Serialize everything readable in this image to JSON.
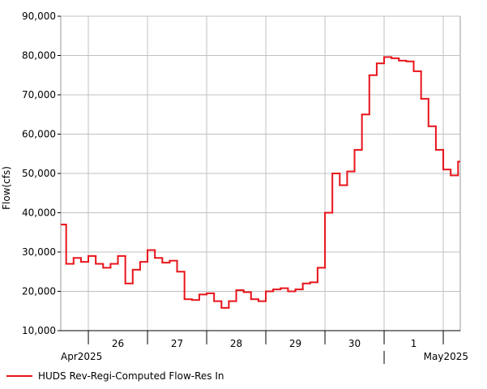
{
  "chart_data": {
    "type": "step-line",
    "y_label": "Flow(cfs)",
    "ylim": [
      10000,
      90000
    ],
    "yticks": [
      {
        "value": 10000,
        "label": "10,000"
      },
      {
        "value": 20000,
        "label": "20,000"
      },
      {
        "value": 30000,
        "label": "30,000"
      },
      {
        "value": 40000,
        "label": "40,000"
      },
      {
        "value": 50000,
        "label": "50,000"
      },
      {
        "value": 60000,
        "label": "60,000"
      },
      {
        "value": 70000,
        "label": "70,000"
      },
      {
        "value": 80000,
        "label": "80,000"
      },
      {
        "value": 90000,
        "label": "90,000"
      }
    ],
    "grid": true,
    "categories": [
      null,
      null,
      null,
      null,
      null,
      null,
      null,
      null,
      "26",
      null,
      null,
      null,
      null,
      null,
      null,
      null,
      "27",
      null,
      null,
      null,
      null,
      null,
      null,
      null,
      "28",
      null,
      null,
      null,
      null,
      null,
      null,
      null,
      "29",
      null,
      null,
      null,
      null,
      null,
      null,
      null,
      "30",
      null,
      null,
      null,
      null,
      null,
      null,
      null,
      "1",
      null,
      null,
      null,
      null,
      null,
      null
    ],
    "x_group_labels": [
      "Apr2025",
      "May2025"
    ],
    "series": [
      {
        "name": "HUDS Rev-Regi-Computed Flow-Res In",
        "color": "#e8141b",
        "values": [
          37000,
          27000,
          28500,
          27500,
          29000,
          27000,
          26000,
          27000,
          29000,
          22000,
          25500,
          27500,
          30500,
          28500,
          27300,
          27800,
          25000,
          18000,
          17800,
          19200,
          19500,
          17500,
          15800,
          17500,
          20300,
          19800,
          18000,
          17500,
          20000,
          20500,
          20800,
          20000,
          20500,
          22000,
          22300,
          26000,
          40000,
          50000,
          47000,
          50500,
          56000,
          65000,
          75000,
          78000,
          79600,
          79300,
          78700,
          78500,
          76000,
          69000,
          62000,
          56000,
          51000,
          49500,
          53000
        ]
      }
    ],
    "legend": "bottom-left"
  }
}
